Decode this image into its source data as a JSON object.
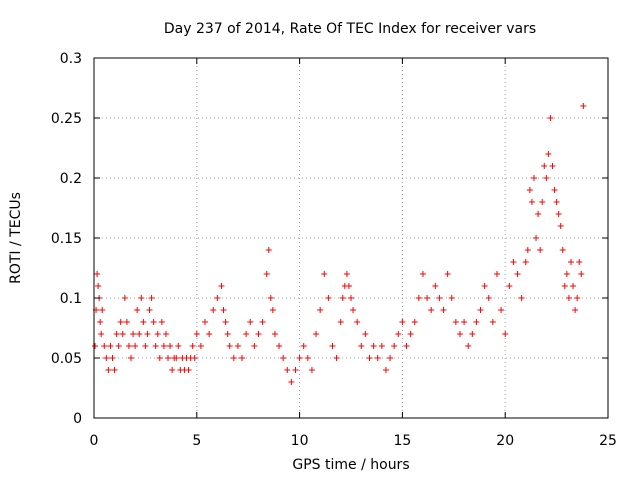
{
  "chart_data": {
    "type": "scatter",
    "title": "Day 237 of 2014, Rate Of TEC Index for receiver vars",
    "xlabel": "GPS time / hours",
    "ylabel": "ROTI / TECUs",
    "xlim": [
      0,
      25
    ],
    "ylim": [
      0,
      0.3
    ],
    "xticks": [
      0,
      5,
      10,
      15,
      20,
      25
    ],
    "xtick_labels": [
      "0",
      "5",
      "10",
      "15",
      "20",
      "25"
    ],
    "yticks": [
      0,
      0.05,
      0.1,
      0.15,
      0.2,
      0.25,
      0.3
    ],
    "ytick_labels": [
      "0",
      "0.05",
      "0.1",
      "0.15",
      "0.2",
      "0.25",
      "0.3"
    ],
    "grid": true,
    "marker": "+",
    "color": "#ff0000",
    "series": [
      {
        "name": "ROTI",
        "x": [
          0.05,
          0.1,
          0.15,
          0.2,
          0.25,
          0.3,
          0.35,
          0.4,
          0.5,
          0.6,
          0.7,
          0.8,
          0.9,
          1.0,
          1.1,
          1.2,
          1.3,
          1.4,
          1.5,
          1.6,
          1.7,
          1.8,
          1.9,
          2.0,
          2.1,
          2.2,
          2.3,
          2.4,
          2.5,
          2.6,
          2.7,
          2.8,
          2.9,
          3.0,
          3.1,
          3.2,
          3.3,
          3.4,
          3.5,
          3.6,
          3.7,
          3.8,
          3.9,
          4.0,
          4.1,
          4.2,
          4.3,
          4.4,
          4.5,
          4.6,
          4.7,
          4.8,
          4.9,
          5.0,
          5.2,
          5.4,
          5.6,
          5.8,
          6.0,
          6.2,
          6.3,
          6.4,
          6.5,
          6.6,
          6.8,
          7.0,
          7.2,
          7.4,
          7.6,
          7.8,
          8.0,
          8.2,
          8.4,
          8.5,
          8.6,
          8.7,
          8.8,
          9.0,
          9.2,
          9.4,
          9.6,
          9.8,
          10.0,
          10.2,
          10.4,
          10.6,
          10.8,
          11.0,
          11.2,
          11.4,
          11.6,
          11.8,
          12.0,
          12.1,
          12.2,
          12.3,
          12.4,
          12.5,
          12.6,
          12.8,
          13.0,
          13.2,
          13.4,
          13.6,
          13.8,
          14.0,
          14.2,
          14.4,
          14.6,
          14.8,
          15.0,
          15.2,
          15.4,
          15.6,
          15.8,
          16.0,
          16.2,
          16.4,
          16.6,
          16.8,
          17.0,
          17.2,
          17.4,
          17.6,
          17.8,
          18.0,
          18.2,
          18.4,
          18.6,
          18.8,
          19.0,
          19.2,
          19.4,
          19.6,
          19.8,
          20.0,
          20.2,
          20.4,
          20.6,
          20.8,
          21.0,
          21.1,
          21.2,
          21.3,
          21.4,
          21.5,
          21.6,
          21.7,
          21.8,
          21.9,
          22.0,
          22.1,
          22.2,
          22.3,
          22.4,
          22.5,
          22.6,
          22.7,
          22.8,
          22.9,
          23.0,
          23.1,
          23.2,
          23.3,
          23.4,
          23.5,
          23.6,
          23.7,
          23.8
        ],
        "y": [
          0.06,
          0.09,
          0.12,
          0.11,
          0.1,
          0.08,
          0.07,
          0.09,
          0.06,
          0.05,
          0.04,
          0.06,
          0.05,
          0.04,
          0.07,
          0.06,
          0.08,
          0.07,
          0.1,
          0.08,
          0.06,
          0.05,
          0.07,
          0.06,
          0.09,
          0.07,
          0.1,
          0.08,
          0.06,
          0.07,
          0.09,
          0.1,
          0.08,
          0.06,
          0.07,
          0.05,
          0.08,
          0.06,
          0.07,
          0.05,
          0.06,
          0.04,
          0.05,
          0.05,
          0.06,
          0.04,
          0.05,
          0.04,
          0.05,
          0.04,
          0.05,
          0.06,
          0.05,
          0.07,
          0.06,
          0.08,
          0.07,
          0.09,
          0.1,
          0.11,
          0.09,
          0.08,
          0.07,
          0.06,
          0.05,
          0.06,
          0.05,
          0.07,
          0.08,
          0.06,
          0.07,
          0.08,
          0.12,
          0.14,
          0.1,
          0.09,
          0.07,
          0.06,
          0.05,
          0.04,
          0.03,
          0.04,
          0.05,
          0.06,
          0.05,
          0.04,
          0.07,
          0.09,
          0.12,
          0.1,
          0.06,
          0.05,
          0.08,
          0.1,
          0.11,
          0.12,
          0.11,
          0.1,
          0.09,
          0.08,
          0.06,
          0.07,
          0.05,
          0.06,
          0.05,
          0.06,
          0.04,
          0.05,
          0.06,
          0.07,
          0.08,
          0.06,
          0.07,
          0.08,
          0.1,
          0.12,
          0.1,
          0.09,
          0.11,
          0.1,
          0.09,
          0.12,
          0.1,
          0.08,
          0.07,
          0.08,
          0.06,
          0.07,
          0.08,
          0.09,
          0.11,
          0.1,
          0.08,
          0.12,
          0.09,
          0.07,
          0.11,
          0.13,
          0.12,
          0.1,
          0.13,
          0.14,
          0.19,
          0.18,
          0.2,
          0.15,
          0.17,
          0.14,
          0.18,
          0.21,
          0.2,
          0.22,
          0.25,
          0.21,
          0.19,
          0.18,
          0.17,
          0.16,
          0.14,
          0.11,
          0.12,
          0.1,
          0.13,
          0.11,
          0.09,
          0.1,
          0.13,
          0.12,
          0.26
        ]
      }
    ]
  }
}
